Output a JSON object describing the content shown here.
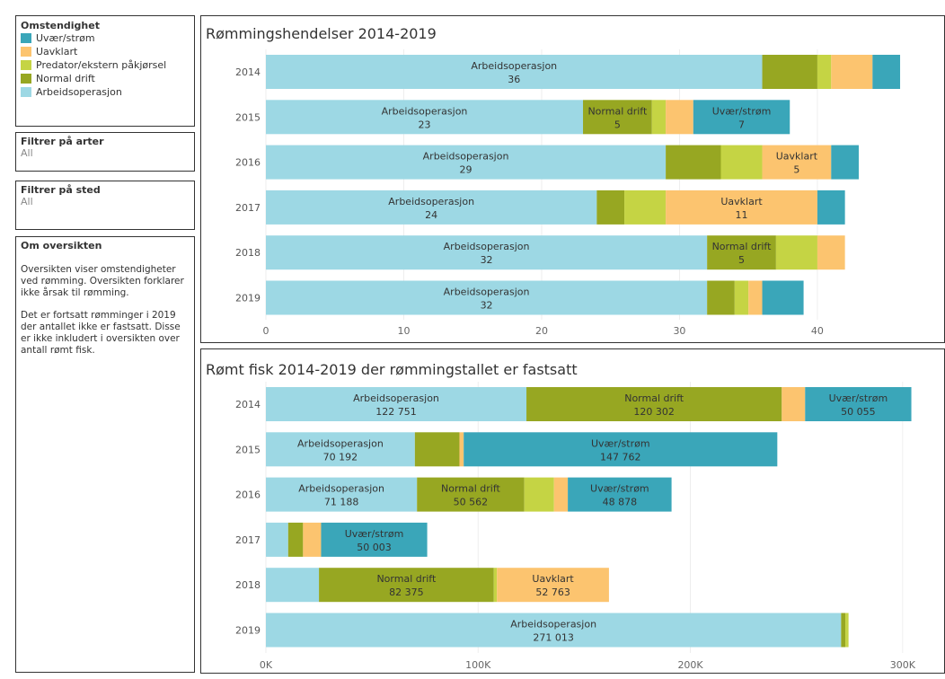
{
  "sidebar": {
    "legend_title": "Omstendighet",
    "filters": [
      {
        "title": "Filtrer på arter",
        "value": "All"
      },
      {
        "title": "Filtrer på sted",
        "value": "All"
      }
    ],
    "about": {
      "title": "Om oversikten",
      "paragraphs": [
        "Oversikten viser omstendigheter ved rømming. Oversikten forklarer ikke årsak til rømming.",
        "Det er fortsatt rømminger i 2019 der antallet ikke er fastsatt. Disse er ikke inkludert i oversikten over antall rømt fisk."
      ]
    }
  },
  "chart_data": [
    {
      "type": "stacked-bar-horizontal",
      "title": "Rømmingshendelser 2014-2019",
      "categories": [
        "2014",
        "2015",
        "2016",
        "2017",
        "2018",
        "2019"
      ],
      "xlim": [
        0,
        48.8
      ],
      "xticks": [
        0,
        10,
        20,
        30,
        40
      ],
      "grid": true,
      "series": [
        {
          "name": "Arbeidsoperasjon",
          "color": "#9dd8e4",
          "values": [
            36,
            23,
            29,
            24,
            32,
            32
          ],
          "value_labels": [
            "36",
            "23",
            "29",
            "24",
            "32",
            "32"
          ]
        },
        {
          "name": "Normal drift",
          "color": "#97a722",
          "values": [
            4,
            5,
            4,
            2,
            5,
            2
          ],
          "value_labels": [
            null,
            "5",
            null,
            null,
            "5",
            null
          ]
        },
        {
          "name": "Predator/ekstern påkjørsel",
          "color": "#c5d444",
          "values": [
            1,
            1,
            3,
            3,
            3,
            1
          ],
          "value_labels": [
            null,
            null,
            null,
            null,
            null,
            null
          ]
        },
        {
          "name": "Uavklart",
          "color": "#fcc46f",
          "values": [
            3,
            2,
            5,
            11,
            2,
            1
          ],
          "value_labels": [
            null,
            null,
            "5",
            "11",
            null,
            null
          ]
        },
        {
          "name": "Uvær/strøm",
          "color": "#3aa6b9",
          "values": [
            2,
            7,
            2,
            2,
            0,
            3
          ],
          "value_labels": [
            null,
            "7",
            null,
            null,
            null,
            null
          ]
        }
      ]
    },
    {
      "type": "stacked-bar-horizontal",
      "title": "Rømt fisk 2014-2019  der rømmingstallet er fastsatt",
      "categories": [
        "2014",
        "2015",
        "2016",
        "2017",
        "2018",
        "2019"
      ],
      "xlim": [
        0,
        317000
      ],
      "xticks": [
        {
          "value": 0,
          "label": "0K"
        },
        {
          "value": 100000,
          "label": "100K"
        },
        {
          "value": 200000,
          "label": "200K"
        },
        {
          "value": 300000,
          "label": "300K"
        }
      ],
      "grid": true,
      "series": [
        {
          "name": "Arbeidsoperasjon",
          "color": "#9dd8e4",
          "values": [
            122751,
            70192,
            71188,
            10500,
            25000,
            271013
          ],
          "value_labels": [
            "122 751",
            "70 192",
            "71 188",
            null,
            null,
            "271 013"
          ]
        },
        {
          "name": "Normal drift",
          "color": "#97a722",
          "values": [
            120302,
            21000,
            50562,
            7000,
            82375,
            2000
          ],
          "value_labels": [
            "120 302",
            null,
            "50 562",
            null,
            "82 375",
            null
          ]
        },
        {
          "name": "Predator/ekstern påkjørsel",
          "color": "#c5d444",
          "values": [
            0,
            0,
            14000,
            0,
            1500,
            1500
          ],
          "value_labels": [
            null,
            null,
            null,
            null,
            null,
            null
          ]
        },
        {
          "name": "Uavklart",
          "color": "#fcc46f",
          "values": [
            11000,
            2000,
            6500,
            8500,
            52763,
            0
          ],
          "value_labels": [
            null,
            null,
            null,
            null,
            "52 763",
            null
          ]
        },
        {
          "name": "Uvær/strøm",
          "color": "#3aa6b9",
          "values": [
            50055,
            147762,
            48878,
            50003,
            0,
            0
          ],
          "value_labels": [
            "50 055",
            "147 762",
            "48 878",
            "50 003",
            null,
            null
          ]
        }
      ]
    }
  ]
}
